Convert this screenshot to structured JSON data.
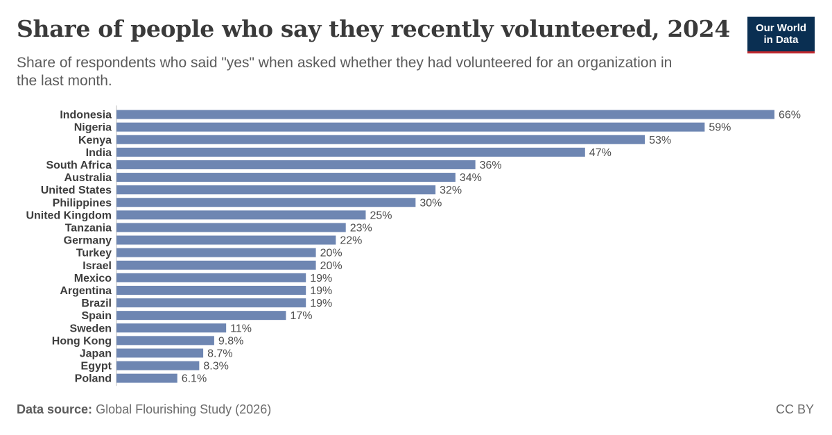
{
  "header": {
    "title": "Share of people who say they recently volunteered, 2024",
    "subtitle": "Share of respondents who said \"yes\" when asked whether they had volunteered for an organization in the last month."
  },
  "logo": {
    "line1": "Our World",
    "line2": "in Data"
  },
  "footer": {
    "source_label": "Data source:",
    "source_text": "Global Flourishing Study (2026)",
    "license": "CC BY"
  },
  "colors": {
    "bar": "#6e86b2",
    "logo_bg": "#0a2f52",
    "logo_accent": "#c0272d"
  },
  "chart_data": {
    "type": "bar",
    "orientation": "horizontal",
    "categories": [
      "Indonesia",
      "Nigeria",
      "Kenya",
      "India",
      "South Africa",
      "Australia",
      "United States",
      "Philippines",
      "United Kingdom",
      "Tanzania",
      "Germany",
      "Turkey",
      "Israel",
      "Mexico",
      "Argentina",
      "Brazil",
      "Spain",
      "Sweden",
      "Hong Kong",
      "Japan",
      "Egypt",
      "Poland"
    ],
    "values": [
      66,
      59,
      53,
      47,
      36,
      34,
      32,
      30,
      25,
      23,
      22,
      20,
      20,
      19,
      19,
      19,
      17,
      11,
      9.8,
      8.7,
      8.3,
      6.1
    ],
    "value_labels": [
      "66%",
      "59%",
      "53%",
      "47%",
      "36%",
      "34%",
      "32%",
      "30%",
      "25%",
      "23%",
      "22%",
      "20%",
      "20%",
      "19%",
      "19%",
      "19%",
      "17%",
      "11%",
      "9.8%",
      "8.7%",
      "8.3%",
      "6.1%"
    ],
    "unit": "%",
    "xlim": [
      0,
      66
    ],
    "grid": false,
    "legend": "none"
  }
}
